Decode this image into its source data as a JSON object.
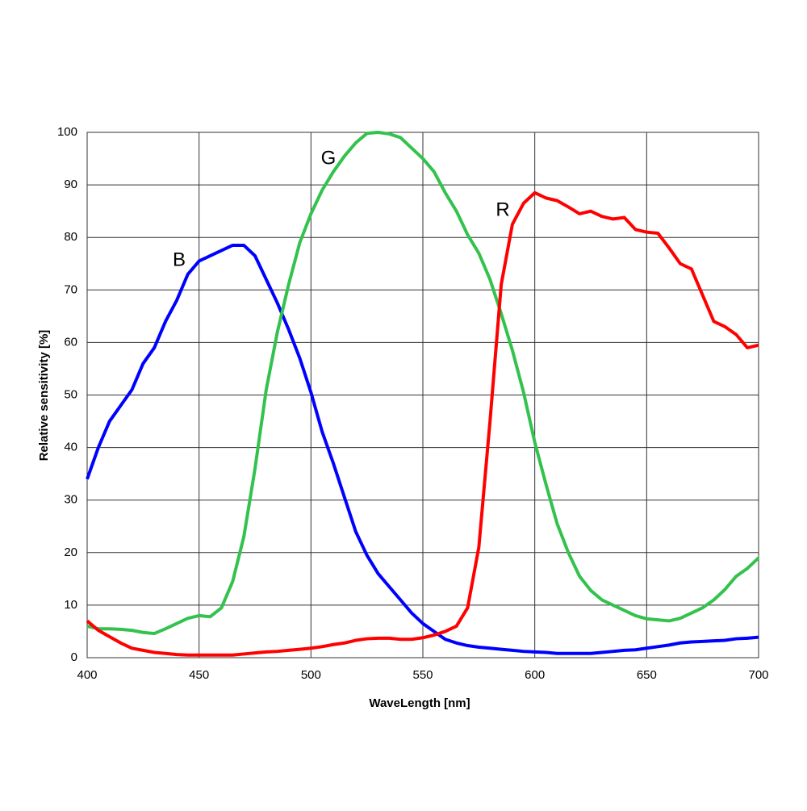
{
  "chart_data": {
    "type": "line",
    "xlabel": "WaveLength [nm]",
    "ylabel": "Relative sensitivity [%]",
    "x": [
      400,
      405,
      410,
      415,
      420,
      425,
      430,
      435,
      440,
      445,
      450,
      455,
      460,
      465,
      470,
      475,
      480,
      485,
      490,
      495,
      500,
      505,
      510,
      515,
      520,
      525,
      530,
      535,
      540,
      545,
      550,
      555,
      560,
      565,
      570,
      575,
      580,
      585,
      590,
      595,
      600,
      605,
      610,
      615,
      620,
      625,
      630,
      635,
      640,
      645,
      650,
      655,
      660,
      665,
      670,
      675,
      680,
      685,
      690,
      695,
      700
    ],
    "series": [
      {
        "name": "B",
        "color": "#0000ff",
        "values": [
          34,
          40,
          45,
          48,
          51,
          56,
          59,
          64,
          68,
          73,
          75.5,
          76.5,
          77.5,
          78.5,
          78.5,
          76.5,
          72,
          67.5,
          62.5,
          57,
          50.5,
          43,
          37,
          30.5,
          24,
          19.5,
          16,
          13.5,
          11,
          8.5,
          6.5,
          5,
          3.5,
          2.8,
          2.3,
          2,
          1.8,
          1.6,
          1.4,
          1.2,
          1.1,
          1,
          0.8,
          0.8,
          0.8,
          0.8,
          1,
          1.2,
          1.4,
          1.5,
          1.8,
          2.1,
          2.4,
          2.8,
          3,
          3.1,
          3.2,
          3.3,
          3.6,
          3.7,
          3.9
        ]
      },
      {
        "name": "G",
        "color": "#33c24d",
        "values": [
          6,
          5.5,
          5.5,
          5.4,
          5.2,
          4.8,
          4.6,
          5.5,
          6.5,
          7.5,
          8,
          7.8,
          9.5,
          14.5,
          23,
          36,
          51,
          62,
          71,
          79,
          84.5,
          89,
          92.5,
          95.5,
          98,
          99.8,
          100,
          99.7,
          99,
          97,
          95,
          92.5,
          88.5,
          85,
          80.5,
          77,
          72,
          65.5,
          58.5,
          50.5,
          41,
          33,
          25.5,
          20,
          15.5,
          12.8,
          11,
          10,
          9,
          8,
          7.4,
          7.2,
          7,
          7.5,
          8.5,
          9.5,
          11,
          13,
          15.5,
          17,
          19
        ]
      },
      {
        "name": "R",
        "color": "#ff0000",
        "values": [
          7,
          5.2,
          4,
          2.8,
          1.8,
          1.4,
          1,
          0.8,
          0.6,
          0.5,
          0.5,
          0.5,
          0.5,
          0.5,
          0.7,
          0.9,
          1.1,
          1.2,
          1.4,
          1.6,
          1.8,
          2.1,
          2.5,
          2.8,
          3.3,
          3.6,
          3.7,
          3.7,
          3.5,
          3.5,
          3.8,
          4.3,
          5,
          6,
          9.5,
          21,
          45,
          71,
          82.5,
          86.5,
          88.5,
          87.5,
          87,
          85.8,
          84.5,
          85,
          84,
          83.5,
          83.8,
          81.5,
          81,
          80.8,
          78,
          75,
          74,
          69,
          64,
          63,
          61.5,
          59,
          59.5
        ]
      }
    ],
    "xlim": [
      400,
      700
    ],
    "xticks": [
      400,
      450,
      500,
      550,
      600,
      650,
      700
    ],
    "ylim": [
      0,
      100
    ],
    "yticks": [
      0,
      10,
      20,
      30,
      40,
      50,
      60,
      70,
      80,
      90,
      100
    ],
    "grid": true
  }
}
